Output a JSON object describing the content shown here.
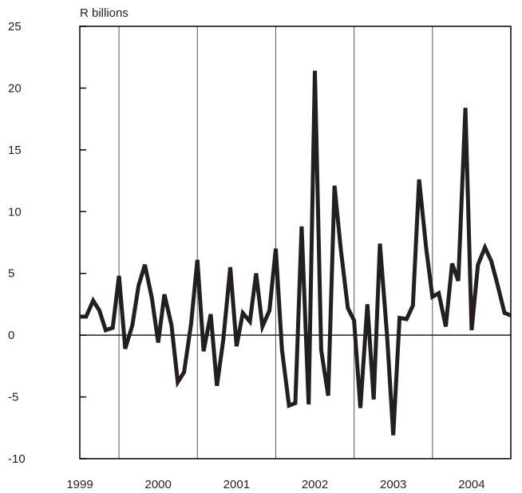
{
  "chart_data": {
    "type": "line",
    "title": "",
    "ylabel": "R billions",
    "xlabel": "",
    "ylim": [
      -10,
      25
    ],
    "yticks": [
      25,
      20,
      15,
      10,
      5,
      0,
      -5,
      -10
    ],
    "years": [
      "1999",
      "2000",
      "2001",
      "2002",
      "2003",
      "2004"
    ],
    "x_range": [
      1999.0,
      2004.5
    ],
    "grid": "vertical lines at year boundaries",
    "line_color": "#231f20",
    "series": [
      {
        "name": "",
        "points": [
          [
            1999.0,
            1.5
          ],
          [
            1999.08,
            1.5
          ],
          [
            1999.17,
            2.8
          ],
          [
            1999.25,
            2.0
          ],
          [
            1999.33,
            0.4
          ],
          [
            1999.42,
            0.6
          ],
          [
            1999.5,
            4.8
          ],
          [
            1999.58,
            -1.1
          ],
          [
            1999.67,
            0.8
          ],
          [
            1999.75,
            4.0
          ],
          [
            1999.83,
            5.7
          ],
          [
            1999.92,
            3.0
          ],
          [
            2000.0,
            -0.6
          ],
          [
            2000.08,
            3.3
          ],
          [
            2000.17,
            0.8
          ],
          [
            2000.25,
            -3.8
          ],
          [
            2000.33,
            -3.0
          ],
          [
            2000.42,
            0.9
          ],
          [
            2000.5,
            6.1
          ],
          [
            2000.58,
            -1.3
          ],
          [
            2000.67,
            1.7
          ],
          [
            2000.75,
            -4.1
          ],
          [
            2000.83,
            -0.4
          ],
          [
            2000.92,
            5.5
          ],
          [
            2001.0,
            -0.9
          ],
          [
            2001.08,
            1.8
          ],
          [
            2001.17,
            1.1
          ],
          [
            2001.25,
            5.0
          ],
          [
            2001.33,
            0.7
          ],
          [
            2001.42,
            2.0
          ],
          [
            2001.5,
            7.0
          ],
          [
            2001.58,
            -1.2
          ],
          [
            2001.67,
            -5.7
          ],
          [
            2001.75,
            -5.5
          ],
          [
            2001.83,
            8.8
          ],
          [
            2001.92,
            -5.6
          ],
          [
            2002.0,
            21.4
          ],
          [
            2002.08,
            -1.2
          ],
          [
            2002.17,
            -4.9
          ],
          [
            2002.25,
            12.1
          ],
          [
            2002.33,
            7.0
          ],
          [
            2002.42,
            2.2
          ],
          [
            2002.5,
            1.2
          ],
          [
            2002.58,
            -5.9
          ],
          [
            2002.67,
            2.5
          ],
          [
            2002.75,
            -5.2
          ],
          [
            2002.83,
            7.4
          ],
          [
            2002.92,
            0.0
          ],
          [
            2003.0,
            -8.1
          ],
          [
            2003.08,
            1.4
          ],
          [
            2003.17,
            1.3
          ],
          [
            2003.25,
            2.4
          ],
          [
            2003.33,
            12.6
          ],
          [
            2003.42,
            7.0
          ],
          [
            2003.5,
            3.1
          ],
          [
            2003.58,
            3.4
          ],
          [
            2003.67,
            0.7
          ],
          [
            2003.75,
            5.8
          ],
          [
            2003.83,
            4.4
          ],
          [
            2003.92,
            18.4
          ],
          [
            2004.0,
            0.4
          ],
          [
            2004.08,
            5.7
          ],
          [
            2004.17,
            7.1
          ],
          [
            2004.25,
            6.0
          ],
          [
            2004.33,
            4.1
          ],
          [
            2004.42,
            1.8
          ],
          [
            2004.5,
            1.6
          ]
        ]
      }
    ]
  }
}
